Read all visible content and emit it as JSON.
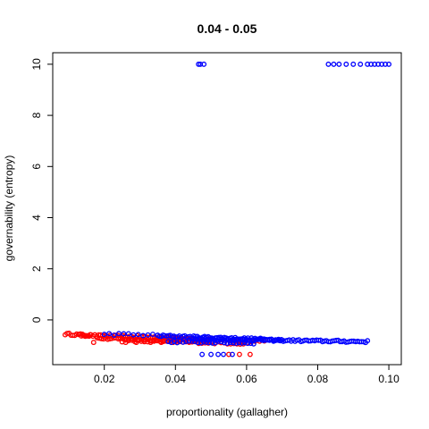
{
  "chart_data": {
    "type": "scatter",
    "title": "0.04 - 0.05",
    "xlabel": "proportionality (gallagher)",
    "ylabel": "governability (entropy)",
    "xlim": [
      0.0055,
      0.1035
    ],
    "ylim": [
      -1.75,
      10.45
    ],
    "xticks": [
      0.02,
      0.04,
      0.06,
      0.08,
      0.1
    ],
    "xtick_labels": [
      "0.02",
      "0.04",
      "0.06",
      "0.08",
      "0.10"
    ],
    "yticks": [
      0,
      2,
      4,
      6,
      8,
      10
    ],
    "ytick_labels": [
      "0",
      "2",
      "4",
      "6",
      "8",
      "10"
    ],
    "grid": false,
    "marker": "open-circle",
    "series": [
      {
        "color": "#ff0000",
        "segments": [
          {
            "x0": 0.009,
            "x1": 0.016,
            "y0": -0.55,
            "y1": -0.6,
            "n": 14
          },
          {
            "x0": 0.013,
            "x1": 0.045,
            "y0": -0.6,
            "y1": -0.72,
            "n": 60
          },
          {
            "x0": 0.018,
            "x1": 0.05,
            "y0": -0.72,
            "y1": -0.85,
            "n": 55
          },
          {
            "x0": 0.025,
            "x1": 0.06,
            "y0": -0.82,
            "y1": -0.92,
            "n": 40
          },
          {
            "x0": 0.04,
            "x1": 0.065,
            "y0": -0.75,
            "y1": -0.85,
            "n": 20
          }
        ],
        "points": [
          {
            "x": 0.017,
            "y": -0.88
          },
          {
            "x": 0.026,
            "y": -0.88
          },
          {
            "x": 0.029,
            "y": -0.88
          },
          {
            "x": 0.033,
            "y": -0.88
          },
          {
            "x": 0.036,
            "y": -0.88
          },
          {
            "x": 0.055,
            "y": -1.35
          },
          {
            "x": 0.058,
            "y": -1.35
          },
          {
            "x": 0.061,
            "y": -1.35
          }
        ]
      },
      {
        "color": "#0000ff",
        "segments": [
          {
            "x0": 0.02,
            "x1": 0.035,
            "y0": -0.55,
            "y1": -0.6,
            "n": 12
          },
          {
            "x0": 0.035,
            "x1": 0.07,
            "y0": -0.62,
            "y1": -0.78,
            "n": 70
          },
          {
            "x0": 0.045,
            "x1": 0.094,
            "y0": -0.75,
            "y1": -0.85,
            "n": 90
          },
          {
            "x0": 0.038,
            "x1": 0.062,
            "y0": -0.85,
            "y1": -0.9,
            "n": 30
          }
        ],
        "points": [
          {
            "x": 0.0465,
            "y": 10
          },
          {
            "x": 0.047,
            "y": 10
          },
          {
            "x": 0.048,
            "y": 10
          },
          {
            "x": 0.083,
            "y": 10
          },
          {
            "x": 0.0845,
            "y": 10
          },
          {
            "x": 0.086,
            "y": 10
          },
          {
            "x": 0.088,
            "y": 10
          },
          {
            "x": 0.09,
            "y": 10
          },
          {
            "x": 0.092,
            "y": 10
          },
          {
            "x": 0.094,
            "y": 10
          },
          {
            "x": 0.095,
            "y": 10
          },
          {
            "x": 0.096,
            "y": 10
          },
          {
            "x": 0.097,
            "y": 10
          },
          {
            "x": 0.098,
            "y": 10
          },
          {
            "x": 0.099,
            "y": 10
          },
          {
            "x": 0.1,
            "y": 10
          },
          {
            "x": 0.0475,
            "y": -1.35
          },
          {
            "x": 0.05,
            "y": -1.35
          },
          {
            "x": 0.052,
            "y": -1.35
          },
          {
            "x": 0.0535,
            "y": -1.35
          },
          {
            "x": 0.056,
            "y": -1.35
          }
        ]
      }
    ]
  }
}
